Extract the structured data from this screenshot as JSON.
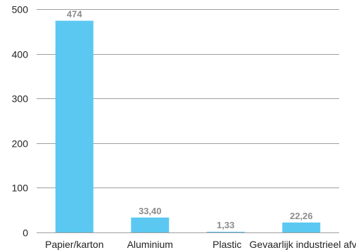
{
  "chart_data": {
    "type": "bar",
    "categories": [
      "Papier/karton",
      "Aluminium",
      "Plastic",
      "Gevaarlijk industrieel afval"
    ],
    "values": [
      474,
      33.4,
      1.33,
      22.26
    ],
    "data_labels": [
      "474",
      "33,40",
      "1,33",
      "22,26"
    ],
    "title": "",
    "xlabel": "",
    "ylabel": "",
    "ylim": [
      0,
      500
    ],
    "yticks": [
      0,
      100,
      200,
      300,
      400,
      500
    ],
    "ytick_labels": [
      "0",
      "100",
      "200",
      "300",
      "400",
      "500"
    ],
    "grid": true,
    "legend": "none",
    "bar_color": "#5bc8f2"
  }
}
